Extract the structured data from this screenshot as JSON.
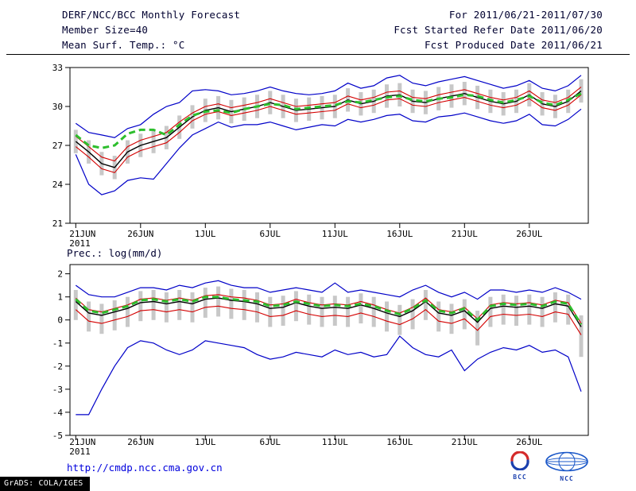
{
  "header": {
    "title": "DERF/NCC/BCC Monthly Forecast",
    "member_size": "Member Size=40",
    "for_range": "For 2011/06/21-2011/07/30",
    "refer_date": "Fcst Started Refer Date 2011/06/20",
    "produced_date": "Fcst Produced Date 2011/06/21"
  },
  "panels": {
    "temp_label": "Mean Surf. Temp.: °C",
    "prec_label": "Prec.: log(mm/d)"
  },
  "footer": {
    "url": "http://cmdp.ncc.cma.gov.cn",
    "credit": "GrADS: COLA/IGES",
    "logo_bcc": "BCC",
    "logo_ncc": "NCC"
  },
  "colors": {
    "envelope_blue": "#0000c8",
    "quartile_red": "#d40000",
    "mean_black": "#000000",
    "dashed_green": "#2dbe2d",
    "spread_gray": "#c8c8c8",
    "link_blue": "#0000dd",
    "text_navy": "#000030"
  },
  "chart_data": [
    {
      "type": "line",
      "title": "Mean Surf. Temp.: °C",
      "xlabel": "",
      "ylabel": "°C",
      "grid": false,
      "legend_position": "none",
      "n_days": 40,
      "ylim": [
        21,
        33
      ],
      "yticks": [
        21,
        24,
        27,
        30,
        33
      ],
      "x_tick_labels": [
        "21JUN",
        "26JUN",
        "1JUL",
        "6JUL",
        "11JUL",
        "16JUL",
        "21JUL",
        "26JUL"
      ],
      "x_tick_positions": [
        0,
        5,
        10,
        15,
        20,
        25,
        30,
        35
      ],
      "x_year_label": "2011",
      "spread_bars": {
        "color": "#c8c8c8",
        "hi": [
          28.2,
          27.4,
          26.5,
          26.2,
          27.4,
          27.9,
          28.2,
          28.5,
          29.3,
          30.1,
          30.6,
          30.8,
          30.5,
          30.7,
          30.9,
          31.2,
          30.9,
          30.6,
          30.7,
          30.8,
          30.9,
          31.4,
          31.1,
          31.3,
          31.7,
          31.8,
          31.3,
          31.2,
          31.5,
          31.7,
          31.9,
          31.6,
          31.3,
          31.1,
          31.3,
          31.8,
          31.1,
          30.9,
          31.3,
          32.1
        ],
        "lo": [
          26.4,
          25.6,
          24.7,
          24.4,
          25.6,
          26.1,
          26.4,
          26.7,
          27.5,
          28.3,
          28.8,
          29.0,
          28.7,
          28.9,
          29.1,
          29.4,
          29.1,
          28.8,
          28.9,
          29.0,
          29.1,
          29.6,
          29.3,
          29.5,
          29.9,
          30.0,
          29.5,
          29.4,
          29.7,
          29.9,
          30.1,
          29.8,
          29.5,
          29.3,
          29.5,
          30.0,
          29.3,
          29.1,
          29.5,
          30.3
        ]
      },
      "series": [
        {
          "name": "ensemble-max",
          "color": "#0000c8",
          "width": 1.2,
          "values": [
            28.7,
            28.0,
            27.8,
            27.6,
            28.3,
            28.6,
            29.4,
            30.0,
            30.3,
            31.2,
            31.3,
            31.2,
            30.9,
            31.0,
            31.2,
            31.5,
            31.2,
            31.0,
            30.9,
            31.0,
            31.2,
            31.8,
            31.4,
            31.6,
            32.2,
            32.4,
            31.8,
            31.6,
            31.9,
            32.1,
            32.3,
            32.0,
            31.7,
            31.4,
            31.6,
            32.0,
            31.4,
            31.2,
            31.6,
            32.4
          ]
        },
        {
          "name": "ensemble-min",
          "color": "#0000c8",
          "width": 1.2,
          "values": [
            26.3,
            24.0,
            23.2,
            23.5,
            24.3,
            24.5,
            24.4,
            25.6,
            26.8,
            27.8,
            28.3,
            28.8,
            28.4,
            28.6,
            28.6,
            28.8,
            28.5,
            28.2,
            28.4,
            28.6,
            28.5,
            29.0,
            28.8,
            29.0,
            29.3,
            29.4,
            28.9,
            28.8,
            29.2,
            29.3,
            29.5,
            29.2,
            28.9,
            28.7,
            28.9,
            29.4,
            28.6,
            28.5,
            29.0,
            29.8
          ]
        },
        {
          "name": "upper-quartile",
          "color": "#d40000",
          "width": 1.1,
          "values": [
            27.7,
            26.9,
            26.1,
            25.8,
            26.9,
            27.4,
            27.7,
            28.0,
            28.8,
            29.5,
            30.0,
            30.2,
            29.9,
            30.1,
            30.3,
            30.6,
            30.3,
            30.0,
            30.1,
            30.2,
            30.3,
            30.8,
            30.5,
            30.7,
            31.1,
            31.2,
            30.7,
            30.6,
            30.9,
            31.1,
            31.3,
            31.0,
            30.7,
            30.5,
            30.7,
            31.2,
            30.5,
            30.3,
            30.7,
            31.5
          ]
        },
        {
          "name": "lower-quartile",
          "color": "#d40000",
          "width": 1.1,
          "values": [
            26.9,
            26.1,
            25.2,
            24.9,
            26.1,
            26.6,
            26.9,
            27.2,
            28.0,
            28.9,
            29.4,
            29.6,
            29.3,
            29.5,
            29.7,
            30.0,
            29.7,
            29.4,
            29.5,
            29.6,
            29.7,
            30.2,
            29.9,
            30.1,
            30.5,
            30.6,
            30.1,
            30.0,
            30.3,
            30.5,
            30.7,
            30.4,
            30.1,
            29.9,
            30.1,
            30.6,
            29.9,
            29.7,
            30.1,
            30.9
          ]
        },
        {
          "name": "ensemble-mean",
          "color": "#000000",
          "width": 1.4,
          "values": [
            27.3,
            26.5,
            25.6,
            25.3,
            26.5,
            27.0,
            27.3,
            27.6,
            28.4,
            29.2,
            29.7,
            29.9,
            29.6,
            29.8,
            30.0,
            30.3,
            30.0,
            29.7,
            29.8,
            29.9,
            30.0,
            30.5,
            30.2,
            30.4,
            30.8,
            30.9,
            30.4,
            30.3,
            30.6,
            30.8,
            31.0,
            30.7,
            30.4,
            30.2,
            30.4,
            30.9,
            30.2,
            30.0,
            30.4,
            31.2
          ]
        },
        {
          "name": "climatology-dashed",
          "color": "#2dbe2d",
          "width": 3,
          "dash": "8 5",
          "values": [
            27.8,
            27.0,
            26.8,
            27.0,
            27.9,
            28.2,
            28.2,
            27.8,
            28.6,
            29.3,
            29.6,
            29.7,
            29.5,
            29.8,
            30.0,
            30.2,
            30.1,
            29.8,
            29.9,
            30.0,
            30.1,
            30.4,
            30.3,
            30.5,
            30.7,
            30.8,
            30.5,
            30.4,
            30.6,
            30.7,
            30.9,
            30.8,
            30.5,
            30.3,
            30.5,
            30.8,
            30.3,
            30.1,
            30.5,
            31.0
          ]
        }
      ]
    },
    {
      "type": "line",
      "title": "Prec.: log(mm/d)",
      "xlabel": "",
      "ylabel": "log(mm/d)",
      "grid": false,
      "legend_position": "none",
      "n_days": 40,
      "ylim": [
        -5,
        2.4
      ],
      "yticks": [
        -5,
        -4,
        -3,
        -2,
        -1,
        0,
        1,
        2
      ],
      "x_tick_labels": [
        "21JUN",
        "26JUN",
        "1JUL",
        "6JUL",
        "11JUL",
        "16JUL",
        "21JUL",
        "26JUL"
      ],
      "x_tick_positions": [
        0,
        5,
        10,
        15,
        20,
        25,
        30,
        35
      ],
      "x_year_label": "2011",
      "spread_bars": {
        "color": "#c8c8c8",
        "hi": [
          1.3,
          0.8,
          0.7,
          0.85,
          1.0,
          1.25,
          1.3,
          1.2,
          1.3,
          1.2,
          1.4,
          1.45,
          1.35,
          1.3,
          1.2,
          1.0,
          1.05,
          1.25,
          1.1,
          1.0,
          1.05,
          1.0,
          1.15,
          1.0,
          0.8,
          0.65,
          0.9,
          1.3,
          0.8,
          0.7,
          0.9,
          0.4,
          1.0,
          1.1,
          1.05,
          1.1,
          1.0,
          1.2,
          1.1,
          0.2
        ],
        "lo": [
          0.0,
          -0.5,
          -0.6,
          -0.45,
          -0.3,
          -0.05,
          0.0,
          -0.1,
          0.0,
          -0.1,
          0.1,
          0.15,
          0.05,
          0.0,
          -0.1,
          -0.3,
          -0.25,
          -0.05,
          -0.2,
          -0.3,
          -0.25,
          -0.3,
          -0.15,
          -0.3,
          -0.5,
          -0.65,
          -0.4,
          0.0,
          -0.5,
          -0.6,
          -0.4,
          -1.1,
          -0.3,
          -0.2,
          -0.25,
          -0.2,
          -0.3,
          -0.1,
          -0.2,
          -1.6
        ]
      },
      "series": [
        {
          "name": "ensemble-max",
          "color": "#0000c8",
          "width": 1.2,
          "values": [
            1.5,
            1.1,
            1.0,
            1.0,
            1.2,
            1.4,
            1.4,
            1.3,
            1.5,
            1.4,
            1.6,
            1.7,
            1.5,
            1.4,
            1.4,
            1.2,
            1.3,
            1.4,
            1.3,
            1.2,
            1.6,
            1.2,
            1.3,
            1.2,
            1.1,
            1.0,
            1.3,
            1.5,
            1.2,
            1.0,
            1.2,
            0.9,
            1.3,
            1.3,
            1.2,
            1.3,
            1.2,
            1.4,
            1.2,
            0.9
          ]
        },
        {
          "name": "ensemble-min",
          "color": "#0000c8",
          "width": 1.2,
          "values": [
            -4.1,
            -4.1,
            -3.0,
            -2.0,
            -1.2,
            -0.9,
            -1.0,
            -1.3,
            -1.5,
            -1.3,
            -0.9,
            -1.0,
            -1.1,
            -1.2,
            -1.5,
            -1.7,
            -1.6,
            -1.4,
            -1.5,
            -1.6,
            -1.3,
            -1.5,
            -1.4,
            -1.6,
            -1.5,
            -0.7,
            -1.2,
            -1.5,
            -1.6,
            -1.3,
            -2.2,
            -1.7,
            -1.4,
            -1.2,
            -1.3,
            -1.1,
            -1.4,
            -1.3,
            -1.6,
            -3.1
          ]
        },
        {
          "name": "upper-quartile",
          "color": "#d40000",
          "width": 1.1,
          "values": [
            0.95,
            0.45,
            0.35,
            0.5,
            0.65,
            0.9,
            0.95,
            0.85,
            0.95,
            0.85,
            1.05,
            1.1,
            1.0,
            0.95,
            0.85,
            0.65,
            0.7,
            0.9,
            0.75,
            0.65,
            0.7,
            0.65,
            0.8,
            0.65,
            0.45,
            0.3,
            0.55,
            0.95,
            0.45,
            0.35,
            0.55,
            0.05,
            0.65,
            0.75,
            0.7,
            0.75,
            0.65,
            0.85,
            0.75,
            -0.15
          ]
        },
        {
          "name": "lower-quartile",
          "color": "#d40000",
          "width": 1.1,
          "values": [
            0.45,
            -0.05,
            -0.15,
            0.0,
            0.15,
            0.4,
            0.45,
            0.35,
            0.45,
            0.35,
            0.55,
            0.6,
            0.5,
            0.45,
            0.35,
            0.15,
            0.2,
            0.4,
            0.25,
            0.15,
            0.2,
            0.15,
            0.3,
            0.15,
            -0.05,
            -0.2,
            0.05,
            0.45,
            -0.05,
            -0.15,
            0.05,
            -0.45,
            0.15,
            0.25,
            0.2,
            0.25,
            0.15,
            0.35,
            0.25,
            -0.65
          ]
        },
        {
          "name": "ensemble-mean",
          "color": "#000000",
          "width": 1.4,
          "values": [
            0.8,
            0.3,
            0.2,
            0.35,
            0.5,
            0.75,
            0.8,
            0.7,
            0.8,
            0.7,
            0.9,
            0.95,
            0.85,
            0.8,
            0.7,
            0.5,
            0.55,
            0.75,
            0.6,
            0.5,
            0.55,
            0.5,
            0.65,
            0.5,
            0.3,
            0.15,
            0.4,
            0.8,
            0.3,
            0.2,
            0.4,
            -0.1,
            0.5,
            0.6,
            0.55,
            0.6,
            0.5,
            0.7,
            0.6,
            -0.3
          ]
        },
        {
          "name": "climatology-dashed",
          "color": "#2dbe2d",
          "width": 3,
          "dash": "8 5",
          "values": [
            0.9,
            0.4,
            0.3,
            0.45,
            0.6,
            0.85,
            0.9,
            0.8,
            0.9,
            0.8,
            1.0,
            1.0,
            0.9,
            0.85,
            0.8,
            0.6,
            0.65,
            0.8,
            0.7,
            0.6,
            0.65,
            0.6,
            0.7,
            0.6,
            0.4,
            0.25,
            0.5,
            0.85,
            0.4,
            0.3,
            0.5,
            0.0,
            0.6,
            0.7,
            0.65,
            0.7,
            0.6,
            0.8,
            0.7,
            -0.2
          ]
        }
      ]
    }
  ]
}
